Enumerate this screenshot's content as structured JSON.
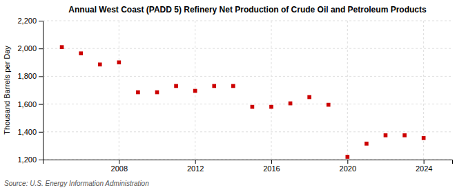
{
  "chart_data": {
    "type": "scatter",
    "title": "Annual West Coast (PADD 5) Refinery Net Production of Crude Oil and Petroleum Products",
    "ylabel": "Thousand Barrels per Day",
    "annotations": [
      "Source: U.S. Energy Information Administration"
    ],
    "x": [
      2005,
      2006,
      2007,
      2008,
      2009,
      2010,
      2011,
      2012,
      2013,
      2014,
      2015,
      2016,
      2017,
      2018,
      2019,
      2020,
      2021,
      2022,
      2023,
      2024
    ],
    "values": [
      2010,
      1965,
      1885,
      1900,
      1685,
      1685,
      1730,
      1695,
      1730,
      1730,
      1580,
      1580,
      1605,
      1650,
      1595,
      1220,
      1315,
      1375,
      1375,
      1355
    ],
    "color": "#cc0000",
    "marker": "square",
    "xlim": [
      2004.0,
      2025.5
    ],
    "xticks": [
      2008,
      2012,
      2016,
      2020,
      2024
    ],
    "ylim": [
      1200,
      2200
    ],
    "yticks": [
      {
        "value": 1200,
        "label": "1,200"
      },
      {
        "value": 1400,
        "label": "1,400"
      },
      {
        "value": 1600,
        "label": "1,600"
      },
      {
        "value": 1800,
        "label": "1,800"
      },
      {
        "value": 2000,
        "label": "2,000"
      },
      {
        "value": 2200,
        "label": "2,200"
      }
    ],
    "grid": true
  }
}
